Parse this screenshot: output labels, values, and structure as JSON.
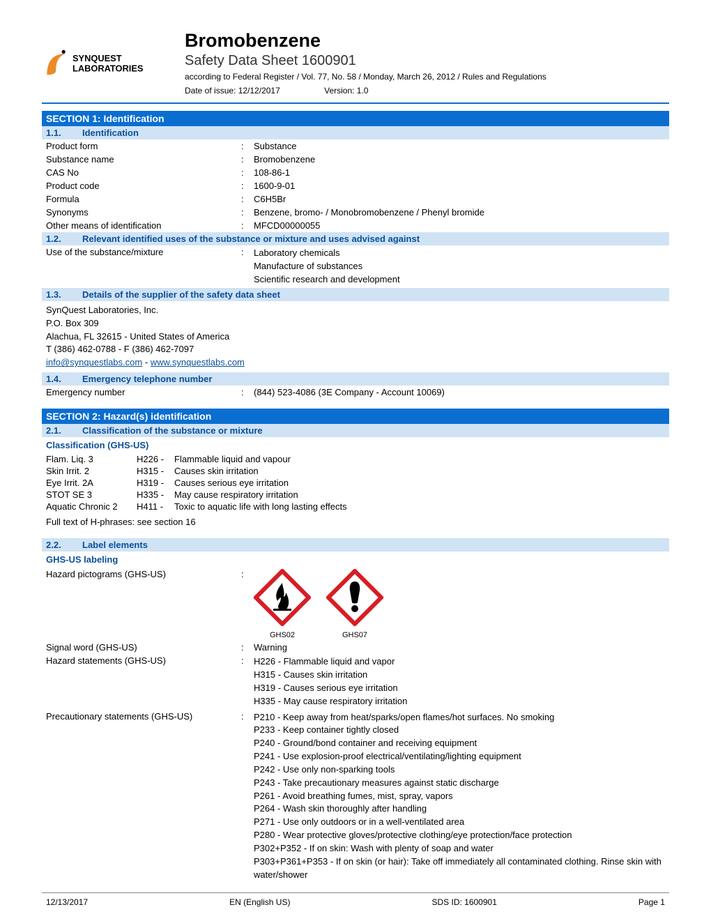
{
  "header": {
    "logo_text_top": "SYNQUEST",
    "logo_text_bottom": "LABORATORIES",
    "title": "Bromobenzene",
    "subtitle": "Safety Data Sheet 1600901",
    "regulation": "according to Federal Register / Vol. 77, No. 58 / Monday, March 26, 2012 / Rules and Regulations",
    "date_label": "Date of issue: 12/12/2017",
    "version_label": "Version: 1.0"
  },
  "section1": {
    "heading": "SECTION 1: Identification",
    "s11_num": "1.1.",
    "s11_title": "Identification",
    "rows": [
      {
        "k": "Product form",
        "v": "Substance"
      },
      {
        "k": "Substance name",
        "v": "Bromobenzene"
      },
      {
        "k": "CAS No",
        "v": "108-86-1"
      },
      {
        "k": "Product code",
        "v": "1600-9-01"
      },
      {
        "k": "Formula",
        "v": "C6H5Br"
      },
      {
        "k": "Synonyms",
        "v": "Benzene, bromo- / Monobromobenzene / Phenyl bromide"
      },
      {
        "k": "Other means of identification",
        "v": "MFCD00000055"
      }
    ],
    "s12_num": "1.2.",
    "s12_title": "Relevant identified uses of the substance or mixture and uses advised against",
    "use_k": "Use of the substance/mixture",
    "use_v": "Laboratory chemicals\nManufacture of substances\nScientific research and development",
    "s13_num": "1.3.",
    "s13_title": "Details of the supplier of the safety data sheet",
    "supplier_lines": [
      "SynQuest Laboratories, Inc.",
      "P.O. Box 309",
      "Alachua, FL 32615 - United States of America",
      "T (386) 462-0788 - F (386) 462-7097"
    ],
    "supplier_email": "info@synquestlabs.com",
    "supplier_dash": " - ",
    "supplier_web": "www.synquestlabs.com",
    "s14_num": "1.4.",
    "s14_title": "Emergency telephone number",
    "emerg_k": "Emergency number",
    "emerg_v": "(844) 523-4086 (3E Company - Account 10069)"
  },
  "section2": {
    "heading": "SECTION 2: Hazard(s) identification",
    "s21_num": "2.1.",
    "s21_title": "Classification of the substance or mixture",
    "class_heading": "Classification (GHS-US)",
    "hazard_rows": [
      {
        "c1": "Flam. Liq. 3",
        "c2": "H226 -",
        "c3": "Flammable liquid and vapour"
      },
      {
        "c1": "Skin Irrit. 2",
        "c2": "H315 -",
        "c3": "Causes skin irritation"
      },
      {
        "c1": "Eye Irrit. 2A",
        "c2": "H319 -",
        "c3": "Causes serious eye irritation"
      },
      {
        "c1": "STOT SE 3",
        "c2": "H335 -",
        "c3": "May cause respiratory irritation"
      },
      {
        "c1": "Aquatic Chronic 2",
        "c2": "H411 -",
        "c3": "Toxic to aquatic life with long lasting effects"
      }
    ],
    "fulltext_note": "Full text of H-phrases: see section 16",
    "s22_num": "2.2.",
    "s22_title": "Label elements",
    "labeling_heading": "GHS-US labeling",
    "picto_k": "Hazard pictograms (GHS-US)",
    "picto1_label": "GHS02",
    "picto2_label": "GHS07",
    "signal_k": "Signal word (GHS-US)",
    "signal_v": "Warning",
    "hstate_k": "Hazard statements (GHS-US)",
    "hstate_v": "H226 - Flammable liquid and vapor\nH315 - Causes skin irritation\nH319 - Causes serious eye irritation\nH335 - May cause respiratory irritation",
    "precaut_k": "Precautionary statements (GHS-US)",
    "precaut_v": "P210 - Keep away from heat/sparks/open flames/hot surfaces. No smoking\nP233 - Keep container tightly closed\nP240 - Ground/bond container and receiving equipment\nP241 - Use explosion-proof electrical/ventilating/lighting equipment\nP242 - Use only non-sparking tools\nP243 - Take precautionary measures against static discharge\nP261 - Avoid breathing fumes, mist, spray, vapors\nP264 - Wash skin thoroughly after handling\nP271 - Use only outdoors or in a well-ventilated area\nP280 - Wear protective gloves/protective clothing/eye protection/face protection\nP302+P352 - If on skin: Wash with plenty of soap and water\nP303+P361+P353 - If on skin (or hair): Take off immediately all contaminated clothing. Rinse skin with water/shower"
  },
  "footer": {
    "date": "12/13/2017",
    "lang": "EN (English US)",
    "sdsid": "SDS ID: 1600901",
    "page": "Page 1"
  },
  "colors": {
    "blue": "#0a6ed1",
    "lightblue": "#d0e3f5",
    "linkblue": "#0a4f9a",
    "red": "#d71d24"
  }
}
